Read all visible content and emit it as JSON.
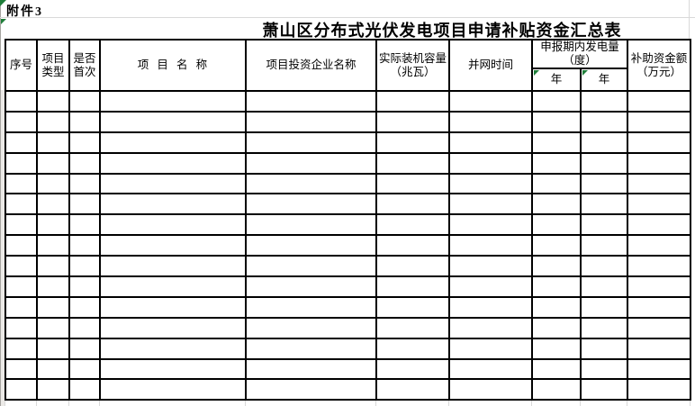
{
  "attachment_label": "附件3",
  "title": "萧山区分布式光伏发电项目申请补贴资金汇总表",
  "table": {
    "header": {
      "serial": "序号",
      "project_type": "项目\n类型",
      "is_first": "是否\n首次",
      "project_name": "项 目 名 称",
      "investor_name": "项目投资企业名称",
      "installed_capacity": "实际装机容量\n（兆瓦）",
      "grid_connection_time": "并网时间",
      "generation_in_period": "申报期内发电量\n（度）",
      "year_left": "年",
      "year_right": "年",
      "subsidy_amount": "补助资金额\n（万元）"
    },
    "body_row_count": 15,
    "column_count": 10
  },
  "colors": {
    "border": "#000000",
    "faint_gridline": "#d9d9d9",
    "error_indicator_green": "#1f7e3a",
    "column_a_fill": "#eceae7"
  }
}
